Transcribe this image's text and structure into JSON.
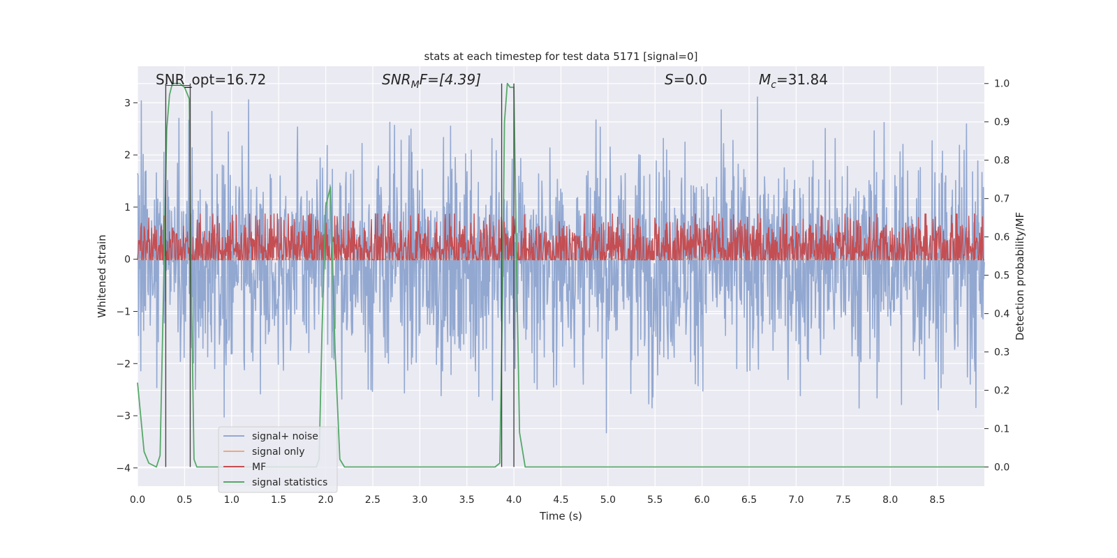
{
  "chart_data": {
    "type": "line",
    "title": "stats at each timestep for test data 5171 [signal=0]",
    "xlabel": "Time (s)",
    "ylabel": "Whitened strain",
    "y2label": "Detection probability/MF",
    "xlim": [
      0,
      9.0
    ],
    "ylim": [
      -4.35,
      3.7
    ],
    "y2lim": [
      -0.05,
      1.045
    ],
    "xticks": [
      "0.0",
      "0.5",
      "1.0",
      "1.5",
      "2.0",
      "2.5",
      "3.0",
      "3.5",
      "4.0",
      "4.5",
      "5.0",
      "5.5",
      "6.0",
      "6.5",
      "7.0",
      "7.5",
      "8.0",
      "8.5"
    ],
    "yticks": [
      "3",
      "2",
      "1",
      "0",
      "−1",
      "−2",
      "−3",
      "−4"
    ],
    "y2ticks": [
      "1.0",
      "0.9",
      "0.8",
      "0.7",
      "0.6",
      "0.5",
      "0.4",
      "0.3",
      "0.2",
      "0.1",
      "0.0"
    ],
    "grid": true,
    "legend_position": "lower-left",
    "annotations": {
      "snr_opt": "SNR_opt=16.72",
      "snr_mf": "SNR",
      "snr_mf_sub": "M",
      "snr_mf_tail": "F=[4.39]",
      "s_label": "S",
      "s_value": "=0.0",
      "mc_label": "M",
      "mc_sub": "c",
      "mc_value": "=31.84"
    },
    "series": [
      {
        "name": "signal+ noise",
        "color": "#92a8d1",
        "axis": "left",
        "style": "noise",
        "amplitude": 1.05,
        "offset": -0.05,
        "n": 1800
      },
      {
        "name": "signal only",
        "color": "#e8a98a",
        "axis": "left",
        "style": "constant",
        "value": 0.0
      },
      {
        "name": "MF",
        "color": "#c44e52",
        "axis": "right",
        "style": "noise",
        "center": 0.57,
        "amplitude": 0.045,
        "n": 1800
      },
      {
        "name": "signal statistics",
        "color": "#55a868",
        "axis": "right",
        "style": "line",
        "x": [
          0.0,
          0.07,
          0.12,
          0.2,
          0.24,
          0.28,
          0.31,
          0.34,
          0.37,
          0.4,
          0.45,
          0.5,
          0.55,
          0.57,
          0.6,
          0.63,
          0.7,
          0.8,
          1.0,
          1.5,
          1.9,
          1.93,
          1.96,
          2.0,
          2.05,
          2.1,
          2.15,
          2.2,
          2.5,
          3.0,
          3.5,
          3.8,
          3.85,
          3.88,
          3.9,
          3.93,
          3.96,
          4.0,
          4.03,
          4.06,
          4.12,
          4.5,
          5.0,
          6.0,
          6.9,
          7.0,
          8.0,
          9.0
        ],
        "y": [
          0.22,
          0.04,
          0.01,
          0.0,
          0.03,
          0.5,
          0.88,
          0.97,
          1.0,
          1.0,
          1.0,
          0.99,
          0.96,
          0.5,
          0.02,
          0.0,
          0.0,
          0.0,
          0.0,
          0.0,
          0.0,
          0.02,
          0.35,
          0.68,
          0.73,
          0.3,
          0.02,
          0.0,
          0.0,
          0.0,
          0.0,
          0.0,
          0.01,
          0.45,
          0.9,
          1.0,
          0.99,
          0.99,
          0.5,
          0.09,
          0.0,
          0.0,
          0.0,
          0.0,
          0.0,
          0.0,
          0.0,
          0.0
        ]
      }
    ],
    "vertical_markers": [
      0.3,
      0.56,
      3.87,
      4.0
    ],
    "marker_color": "#444444"
  }
}
